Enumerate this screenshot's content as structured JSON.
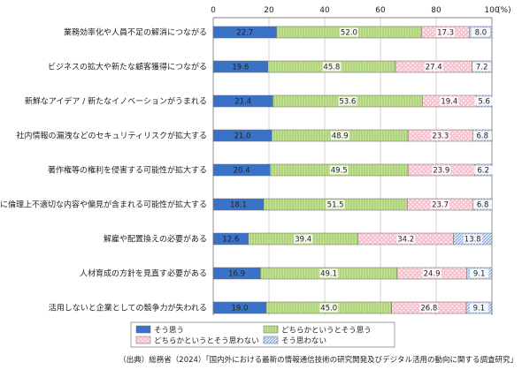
{
  "chart_data": {
    "type": "bar",
    "orientation": "horizontal",
    "stacked": true,
    "xlim": [
      0,
      100
    ],
    "ticks": [
      0,
      20,
      40,
      60,
      80,
      100
    ],
    "unit": "(%)",
    "categories": [
      "業務効率化や人員不足の解消につながる",
      "ビジネスの拡大や新たな顧客獲得につながる",
      "新鮮なアイデア / 新たなイノベーションがうまれる",
      "社内情報の漏洩などのセキュリティリスクが拡大する",
      "著作権等の権利を侵害する可能性が拡大する",
      "生成物に倫理上不適切な内容や偏見が含まれる可能性が拡大する",
      "解雇や配置換えの必要がある",
      "人材育成の方針を見直す必要がある",
      "活用しないと企業としての競争力が失われる"
    ],
    "series": [
      {
        "name": "そう思う",
        "color": "#3a72c8",
        "values": [
          22.7,
          19.6,
          21.4,
          21.0,
          20.4,
          18.1,
          12.6,
          16.9,
          19.0
        ]
      },
      {
        "name": "どちらかというとそう思う",
        "color": "#c7e39a",
        "values": [
          52.0,
          45.8,
          53.6,
          48.9,
          49.5,
          51.5,
          39.4,
          49.1,
          45.0
        ]
      },
      {
        "name": "どちらかというとそう思わない",
        "color": "#f6c3cf",
        "values": [
          17.3,
          27.4,
          19.4,
          23.3,
          23.9,
          23.7,
          34.2,
          24.9,
          26.8
        ]
      },
      {
        "name": "そう思わない",
        "color": "#c9d9f1",
        "values": [
          8.0,
          7.2,
          5.6,
          6.8,
          6.2,
          6.8,
          13.8,
          9.1,
          9.1
        ]
      }
    ],
    "legend_placement": "bottom-center"
  },
  "source": "（出典）総務省（2024）「国内外における最新の情報通信技術の研究開発及びデジタル活用の動向に関する調査研究」"
}
